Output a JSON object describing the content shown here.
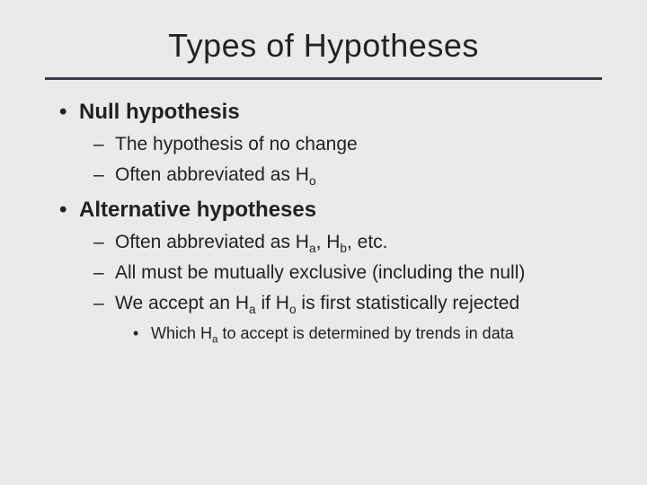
{
  "title": "Types of Hypotheses",
  "colors": {
    "background": "#eaeaea",
    "text": "#222222",
    "rule": "#3a3a4a"
  },
  "typography": {
    "title_fontsize": 36,
    "top_fontsize": 24,
    "sub_fontsize": 21,
    "subsub_fontsize": 18,
    "font_family": "Gill Sans"
  },
  "bullets": [
    {
      "label": "Null hypothesis",
      "subs": [
        {
          "text": "The hypothesis of no change"
        },
        {
          "html": "Often abbreviated as H<sub>o</sub>"
        }
      ]
    },
    {
      "label": "Alternative hypotheses",
      "subs": [
        {
          "html": "Often abbreviated as H<sub>a</sub>, H<sub>b</sub>, etc."
        },
        {
          "text": "All must be mutually exclusive (including the null)"
        },
        {
          "html": "We accept an H<sub>a</sub> if H<sub>o</sub> is first statistically rejected",
          "subsubs": [
            {
              "html": "Which H<sub>a</sub> to accept is determined by trends in data"
            }
          ]
        }
      ]
    }
  ]
}
